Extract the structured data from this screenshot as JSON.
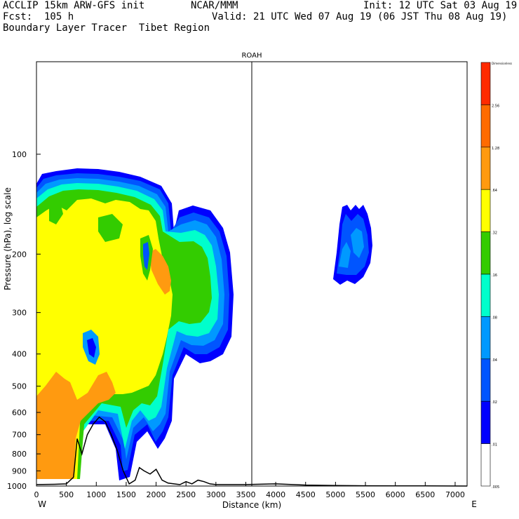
{
  "header": {
    "line1_left": "ACCLIP 15km ARW-GFS init",
    "line1_mid": "NCAR/MMM",
    "line1_right": "Init: 12 UTC Sat 03 Aug 19",
    "line2_left": "Fcst:  105 h",
    "line2_right": "Valid: 21 UTC Wed 07 Aug 19 (06 JST Thu 08 Aug 19)",
    "line3_left": "Boundary Layer Tracer  Tibet Region"
  },
  "chart_data": {
    "type": "heatmap",
    "title": "ROAH",
    "xlabel": "Distance (km)",
    "ylabel": "Pressure (hPa), log scale",
    "xlim": [
      0,
      7200
    ],
    "ylim": [
      1000,
      55
    ],
    "y_scale": "log",
    "x_ticks": [
      0,
      500,
      1000,
      1500,
      2000,
      2500,
      3000,
      3500,
      4000,
      4500,
      5000,
      5500,
      6000,
      6500,
      7000
    ],
    "y_ticks": [
      100,
      200,
      300,
      400,
      500,
      600,
      700,
      800,
      900,
      1000
    ],
    "x_end_labels": {
      "left": "W",
      "right": "E"
    },
    "marker_line_x": 3600,
    "legend": {
      "placement": "right",
      "levels": [
        "Dimensionless",
        "2.56",
        "1.28",
        ".64",
        ".32",
        ".16",
        ".08",
        ".04",
        ".02",
        ".01",
        ".005"
      ],
      "colors": [
        "#ff2a00",
        "#ff6b00",
        "#ff9a10",
        "#ffff00",
        "#33cc00",
        "#00ffcc",
        "#0099ff",
        "#0055ff",
        "#0000ff",
        "#ffffff"
      ]
    },
    "series": [
      {
        "name": "terrain",
        "x": [
          0,
          300,
          500,
          620,
          680,
          760,
          850,
          950,
          1050,
          1150,
          1250,
          1350,
          1450,
          1550,
          1650,
          1720,
          1800,
          1900,
          2000,
          2100,
          2200,
          2300,
          2400,
          2500,
          2600,
          2700,
          2800,
          2900,
          3000,
          3500,
          4000,
          4500,
          5000,
          5500,
          6000,
          6500,
          7200
        ],
        "y": [
          990,
          988,
          985,
          940,
          720,
          800,
          700,
          650,
          620,
          640,
          700,
          780,
          900,
          985,
          960,
          880,
          900,
          920,
          890,
          960,
          980,
          985,
          990,
          970,
          985,
          960,
          970,
          985,
          990,
          990,
          985,
          993,
          996,
          998,
          999,
          999,
          1000
        ]
      }
    ]
  }
}
